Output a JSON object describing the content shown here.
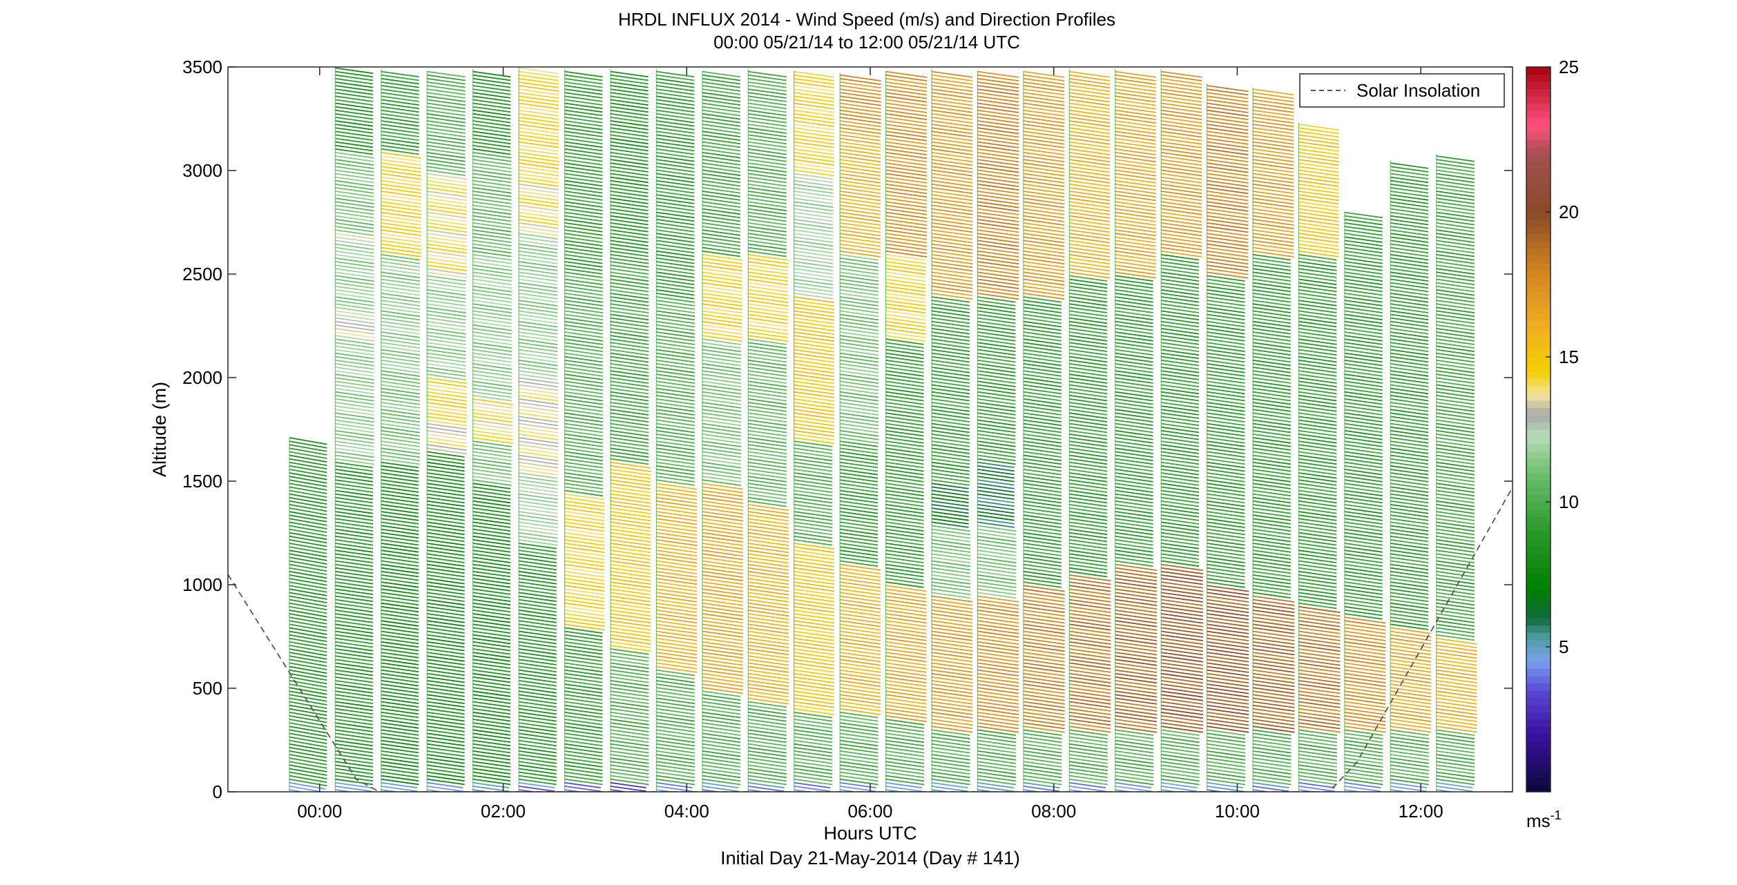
{
  "chart_data": {
    "type": "barb-profile",
    "title": "HRDL INFLUX 2014 - Wind Speed (m/s) and Direction Profiles",
    "subtitle": "00:00 05/21/14 to 12:00 05/21/14  UTC",
    "xlabel": "Hours UTC",
    "xlabel2": "Initial Day 21-May-2014 (Day # 141)",
    "ylabel": "Altitude (m)",
    "xlim_hours": [
      -1.0,
      13.0
    ],
    "ylim": [
      0,
      3500
    ],
    "x_ticks": [
      {
        "value": 0,
        "label": "00:00"
      },
      {
        "value": 2,
        "label": "02:00"
      },
      {
        "value": 4,
        "label": "04:00"
      },
      {
        "value": 6,
        "label": "06:00"
      },
      {
        "value": 8,
        "label": "08:00"
      },
      {
        "value": 10,
        "label": "10:00"
      },
      {
        "value": 12,
        "label": "12:00"
      }
    ],
    "y_ticks": [
      {
        "value": 0,
        "label": "0"
      },
      {
        "value": 500,
        "label": "500"
      },
      {
        "value": 1000,
        "label": "1000"
      },
      {
        "value": 1500,
        "label": "1500"
      },
      {
        "value": 2000,
        "label": "2000"
      },
      {
        "value": 2500,
        "label": "2500"
      },
      {
        "value": 3000,
        "label": "3000"
      },
      {
        "value": 3500,
        "label": "3500"
      }
    ],
    "legend": {
      "entry": "Solar Insolation",
      "placement": "top-right"
    },
    "colorbar": {
      "range": [
        0,
        25
      ],
      "unit_base": "ms",
      "unit_exp": "-1",
      "ticks": [
        {
          "value": 5,
          "label": "5"
        },
        {
          "value": 10,
          "label": "10"
        },
        {
          "value": 15,
          "label": "15"
        },
        {
          "value": 20,
          "label": "20"
        },
        {
          "value": 25,
          "label": "25"
        }
      ],
      "stops": [
        {
          "v": 0,
          "c": "#0a0a3a"
        },
        {
          "v": 2,
          "c": "#3a10a0"
        },
        {
          "v": 3.5,
          "c": "#5a4ad6"
        },
        {
          "v": 4.5,
          "c": "#7aa0ee"
        },
        {
          "v": 5.3,
          "c": "#4f9fa6"
        },
        {
          "v": 6,
          "c": "#0f6a3a"
        },
        {
          "v": 7,
          "c": "#008000"
        },
        {
          "v": 9,
          "c": "#2a9a2a"
        },
        {
          "v": 11,
          "c": "#6ebe6e"
        },
        {
          "v": 12.3,
          "c": "#b8dcb8"
        },
        {
          "v": 13,
          "c": "#a8a8a8"
        },
        {
          "v": 13.7,
          "c": "#f2e4a0"
        },
        {
          "v": 14.5,
          "c": "#f2d000"
        },
        {
          "v": 16,
          "c": "#f0b020"
        },
        {
          "v": 18,
          "c": "#d08420"
        },
        {
          "v": 20,
          "c": "#8a4a28"
        },
        {
          "v": 22,
          "c": "#a45050"
        },
        {
          "v": 23,
          "c": "#ff5080"
        },
        {
          "v": 25,
          "c": "#a80010"
        }
      ]
    },
    "solar_insolation": {
      "style": "dashed",
      "color": "#555555",
      "points": [
        {
          "x": -1.0,
          "y": 1050
        },
        {
          "x": 0.4,
          "y": 60
        },
        {
          "x": 0.65,
          "y": 0
        },
        {
          "x": 11.0,
          "y": 0
        },
        {
          "x": 11.3,
          "y": 140
        },
        {
          "x": 13.0,
          "y": 1470
        }
      ]
    },
    "profiles": [
      {
        "hour": -0.33,
        "top": 1710,
        "angle": 10,
        "speed_layers": [
          [
            0,
            60,
            5
          ],
          [
            60,
            1710,
            8.5
          ]
        ]
      },
      {
        "hour": 0.17,
        "top": 3500,
        "angle": 8,
        "speed_layers": [
          [
            0,
            60,
            5
          ],
          [
            60,
            1600,
            8.5
          ],
          [
            1600,
            2200,
            11.5
          ],
          [
            2200,
            2330,
            13
          ],
          [
            2330,
            2650,
            11.5
          ],
          [
            2650,
            2700,
            13
          ],
          [
            2700,
            3100,
            11
          ],
          [
            3100,
            3500,
            8.5
          ]
        ]
      },
      {
        "hour": 0.67,
        "top": 3490,
        "angle": 8,
        "speed_layers": [
          [
            0,
            60,
            4.5
          ],
          [
            60,
            1600,
            8
          ],
          [
            1600,
            2050,
            11
          ],
          [
            2050,
            2600,
            11.5
          ],
          [
            2600,
            3100,
            14.5
          ],
          [
            3100,
            3490,
            9
          ]
        ]
      },
      {
        "hour": 1.17,
        "top": 3480,
        "angle": 8,
        "speed_layers": [
          [
            0,
            60,
            4
          ],
          [
            60,
            1650,
            8
          ],
          [
            1650,
            1800,
            13.5
          ],
          [
            1800,
            2000,
            14.5
          ],
          [
            2000,
            2500,
            11.5
          ],
          [
            2500,
            3000,
            14
          ],
          [
            3000,
            3480,
            10
          ]
        ]
      },
      {
        "hour": 1.67,
        "top": 3490,
        "angle": 8,
        "speed_layers": [
          [
            0,
            60,
            4.5
          ],
          [
            60,
            1500,
            8
          ],
          [
            1500,
            1700,
            11
          ],
          [
            1700,
            1900,
            14
          ],
          [
            1900,
            2600,
            11.5
          ],
          [
            2600,
            3100,
            10.5
          ],
          [
            3100,
            3490,
            8.5
          ]
        ]
      },
      {
        "hour": 2.17,
        "top": 3500,
        "angle": 8,
        "speed_layers": [
          [
            0,
            60,
            4
          ],
          [
            60,
            1200,
            8.5
          ],
          [
            1200,
            1550,
            12
          ],
          [
            1550,
            2000,
            13.5
          ],
          [
            2000,
            2700,
            11.5
          ],
          [
            2700,
            3000,
            14
          ],
          [
            3000,
            3500,
            14.5
          ]
        ]
      },
      {
        "hour": 2.67,
        "top": 3490,
        "angle": 8,
        "speed_layers": [
          [
            0,
            60,
            4
          ],
          [
            60,
            800,
            9
          ],
          [
            800,
            1450,
            14.5
          ],
          [
            1450,
            2500,
            10
          ],
          [
            2500,
            3490,
            9
          ]
        ]
      },
      {
        "hour": 3.17,
        "top": 3490,
        "angle": 8,
        "speed_layers": [
          [
            0,
            60,
            3
          ],
          [
            60,
            700,
            10
          ],
          [
            700,
            1600,
            15
          ],
          [
            1600,
            2600,
            9.5
          ],
          [
            2600,
            3490,
            8.5
          ]
        ]
      },
      {
        "hour": 3.67,
        "top": 3490,
        "angle": 8,
        "speed_layers": [
          [
            0,
            60,
            4
          ],
          [
            60,
            600,
            10
          ],
          [
            600,
            1500,
            16
          ],
          [
            1500,
            2400,
            10
          ],
          [
            2400,
            3490,
            9
          ]
        ]
      },
      {
        "hour": 4.17,
        "top": 3480,
        "angle": 8,
        "speed_layers": [
          [
            0,
            60,
            4.5
          ],
          [
            60,
            500,
            10
          ],
          [
            500,
            1500,
            16.5
          ],
          [
            1500,
            2200,
            11
          ],
          [
            2200,
            2600,
            14.5
          ],
          [
            2600,
            3480,
            9.5
          ]
        ]
      },
      {
        "hour": 4.67,
        "top": 3490,
        "angle": 8,
        "speed_layers": [
          [
            0,
            60,
            4.5
          ],
          [
            60,
            450,
            10
          ],
          [
            450,
            1400,
            16
          ],
          [
            1400,
            2200,
            10.5
          ],
          [
            2200,
            2600,
            14.5
          ],
          [
            2600,
            3490,
            10
          ]
        ]
      },
      {
        "hour": 5.17,
        "top": 3480,
        "angle": 8,
        "speed_layers": [
          [
            0,
            60,
            4.5
          ],
          [
            60,
            400,
            10
          ],
          [
            400,
            1200,
            15
          ],
          [
            1200,
            1700,
            10
          ],
          [
            1700,
            2400,
            15
          ],
          [
            2400,
            3000,
            12
          ],
          [
            3000,
            3480,
            14.5
          ]
        ]
      },
      {
        "hour": 5.67,
        "top": 3470,
        "angle": 8,
        "speed_layers": [
          [
            0,
            60,
            4.5
          ],
          [
            60,
            400,
            10
          ],
          [
            400,
            1100,
            16
          ],
          [
            1100,
            1700,
            9
          ],
          [
            1700,
            2600,
            11
          ],
          [
            2600,
            3200,
            16
          ],
          [
            3200,
            3470,
            17.5
          ]
        ]
      },
      {
        "hour": 6.17,
        "top": 3480,
        "angle": 8,
        "speed_layers": [
          [
            0,
            60,
            4.5
          ],
          [
            60,
            350,
            10
          ],
          [
            350,
            1000,
            16.5
          ],
          [
            1000,
            2200,
            9
          ],
          [
            2200,
            2600,
            14.5
          ],
          [
            2600,
            3480,
            17.5
          ]
        ]
      },
      {
        "hour": 6.67,
        "top": 3490,
        "angle": 8,
        "speed_layers": [
          [
            0,
            60,
            4.5
          ],
          [
            60,
            300,
            10
          ],
          [
            300,
            950,
            17
          ],
          [
            950,
            1300,
            11
          ],
          [
            1300,
            1500,
            6.5
          ],
          [
            1500,
            2400,
            9
          ],
          [
            2400,
            3490,
            17
          ]
        ]
      },
      {
        "hour": 7.17,
        "top": 3480,
        "angle": 8,
        "speed_layers": [
          [
            0,
            60,
            4.5
          ],
          [
            60,
            300,
            10
          ],
          [
            300,
            950,
            17.5
          ],
          [
            950,
            1300,
            11
          ],
          [
            1300,
            1600,
            6
          ],
          [
            1600,
            2400,
            9
          ],
          [
            2400,
            3480,
            18
          ]
        ]
      },
      {
        "hour": 7.67,
        "top": 3480,
        "angle": 8,
        "speed_layers": [
          [
            0,
            60,
            4.5
          ],
          [
            60,
            300,
            10
          ],
          [
            300,
            1000,
            18
          ],
          [
            1000,
            2400,
            9
          ],
          [
            2400,
            3480,
            17
          ]
        ]
      },
      {
        "hour": 8.17,
        "top": 3490,
        "angle": 8,
        "speed_layers": [
          [
            0,
            60,
            4.5
          ],
          [
            60,
            300,
            10
          ],
          [
            300,
            1050,
            18.5
          ],
          [
            1050,
            2500,
            9
          ],
          [
            2500,
            3490,
            16
          ]
        ]
      },
      {
        "hour": 8.67,
        "top": 3490,
        "angle": 8,
        "speed_layers": [
          [
            0,
            60,
            4.5
          ],
          [
            60,
            300,
            10
          ],
          [
            300,
            1100,
            19
          ],
          [
            1100,
            2500,
            9
          ],
          [
            2500,
            3490,
            16.5
          ]
        ]
      },
      {
        "hour": 9.17,
        "top": 3490,
        "angle": 8,
        "speed_layers": [
          [
            0,
            60,
            4.5
          ],
          [
            60,
            300,
            10
          ],
          [
            300,
            1100,
            19.5
          ],
          [
            1100,
            2600,
            9
          ],
          [
            2600,
            3490,
            17
          ]
        ]
      },
      {
        "hour": 9.67,
        "top": 3420,
        "angle": 8,
        "speed_layers": [
          [
            0,
            60,
            4.5
          ],
          [
            60,
            300,
            10
          ],
          [
            300,
            1000,
            19.5
          ],
          [
            1000,
            2500,
            9
          ],
          [
            2500,
            3420,
            18
          ]
        ]
      },
      {
        "hour": 10.17,
        "top": 3400,
        "angle": 8,
        "speed_layers": [
          [
            0,
            60,
            4.5
          ],
          [
            60,
            300,
            10
          ],
          [
            300,
            950,
            19
          ],
          [
            950,
            2600,
            9
          ],
          [
            2600,
            3400,
            17
          ]
        ]
      },
      {
        "hour": 10.67,
        "top": 3230,
        "angle": 8,
        "speed_layers": [
          [
            0,
            60,
            4.5
          ],
          [
            60,
            300,
            10
          ],
          [
            300,
            900,
            18.5
          ],
          [
            900,
            2600,
            9
          ],
          [
            2600,
            3230,
            15
          ]
        ]
      },
      {
        "hour": 11.17,
        "top": 2800,
        "angle": 8,
        "speed_layers": [
          [
            0,
            60,
            4.5
          ],
          [
            60,
            300,
            10
          ],
          [
            300,
            850,
            17.5
          ],
          [
            850,
            2800,
            9
          ]
        ]
      },
      {
        "hour": 11.67,
        "top": 3050,
        "angle": 8,
        "speed_layers": [
          [
            0,
            60,
            4.5
          ],
          [
            60,
            300,
            10
          ],
          [
            300,
            800,
            16.5
          ],
          [
            800,
            3050,
            9
          ]
        ]
      },
      {
        "hour": 12.17,
        "top": 3080,
        "angle": 8,
        "speed_layers": [
          [
            0,
            60,
            4.5
          ],
          [
            60,
            300,
            10
          ],
          [
            300,
            750,
            16
          ],
          [
            750,
            3080,
            9.5
          ]
        ]
      }
    ]
  }
}
